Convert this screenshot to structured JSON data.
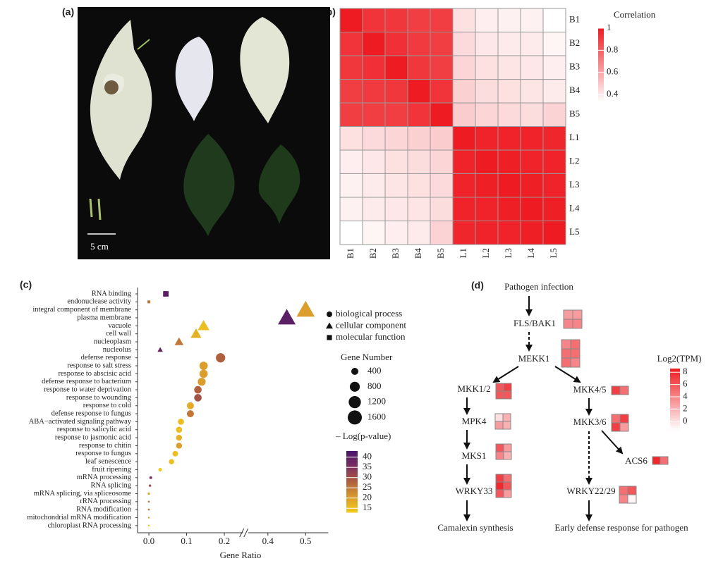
{
  "panel_labels": [
    "(a)",
    "(b)",
    "(c)",
    "(d)"
  ],
  "photo": {
    "scale_bar": "5 cm"
  },
  "chart_data": [
    {
      "type": "heatmap",
      "x_categories": [
        "B1",
        "B2",
        "B3",
        "B4",
        "B5",
        "L1",
        "L2",
        "L3",
        "L4",
        "L5"
      ],
      "y_categories": [
        "B1",
        "B2",
        "B3",
        "B4",
        "B5",
        "L1",
        "L2",
        "L3",
        "L4",
        "L5"
      ],
      "values": [
        [
          1,
          0.93,
          0.92,
          0.9,
          0.9,
          0.42,
          0.38,
          0.37,
          0.37,
          0.33
        ],
        [
          0.93,
          1,
          0.94,
          0.91,
          0.9,
          0.44,
          0.4,
          0.39,
          0.39,
          0.36
        ],
        [
          0.92,
          0.94,
          1,
          0.92,
          0.9,
          0.45,
          0.42,
          0.41,
          0.4,
          0.38
        ],
        [
          0.9,
          0.91,
          0.92,
          1,
          0.93,
          0.47,
          0.43,
          0.42,
          0.41,
          0.39
        ],
        [
          0.9,
          0.9,
          0.9,
          0.93,
          1,
          0.48,
          0.45,
          0.44,
          0.43,
          0.46
        ],
        [
          0.42,
          0.44,
          0.45,
          0.47,
          0.48,
          1,
          0.98,
          0.98,
          0.98,
          0.97
        ],
        [
          0.38,
          0.4,
          0.42,
          0.43,
          0.45,
          0.98,
          1,
          0.99,
          0.98,
          0.98
        ],
        [
          0.37,
          0.39,
          0.41,
          0.42,
          0.44,
          0.98,
          0.99,
          1,
          0.99,
          0.98
        ],
        [
          0.37,
          0.39,
          0.4,
          0.41,
          0.43,
          0.98,
          0.98,
          0.99,
          1,
          0.99
        ],
        [
          0.33,
          0.36,
          0.38,
          0.39,
          0.46,
          0.97,
          0.98,
          0.98,
          0.99,
          1
        ]
      ],
      "colorbar_title": "Correlation",
      "clim": [
        0.33,
        1
      ],
      "cticks": [
        0.4,
        0.6,
        0.8,
        1
      ],
      "colors": [
        "#ffffff",
        "#ee1c22"
      ]
    },
    {
      "type": "dotplot",
      "categories": [
        "RNA binding",
        "endonuclease activity",
        "integral component of membrane",
        "plasma membrane",
        "vacuole",
        "cell wall",
        "nucleoplasm",
        "nucleolus",
        "defense response",
        "response to salt stress",
        "response to abscisic acid",
        "defense response to bacterium",
        "response to water deprivation",
        "response to wounding",
        "response to cold",
        "defense response to fungus",
        "ABA−activated signaling pathway",
        "response to salicylic acid",
        "response to jasmonic acid",
        "response to chitin",
        "response to fungus",
        "leaf senescence",
        "fruit ripening",
        "mRNA processing",
        "RNA splicing",
        "mRNA splicing, via spliceosome",
        "rRNA processing",
        "RNA modification",
        "mitochondrial mRNA modification",
        "chloroplast RNA processing"
      ],
      "x": [
        0.045,
        0.0,
        0.5,
        0.45,
        0.145,
        0.125,
        0.08,
        0.03,
        0.19,
        0.145,
        0.145,
        0.14,
        0.13,
        0.13,
        0.11,
        0.11,
        0.085,
        0.08,
        0.08,
        0.08,
        0.07,
        0.06,
        0.03,
        0.005,
        0.003,
        0.0,
        0.0,
        0.0,
        0.0,
        0.0
      ],
      "sizes": [
        300,
        80,
        1700,
        1600,
        700,
        600,
        400,
        150,
        700,
        550,
        550,
        500,
        450,
        450,
        400,
        400,
        300,
        300,
        280,
        280,
        250,
        220,
        100,
        60,
        50,
        40,
        30,
        30,
        20,
        20
      ],
      "color_values": [
        40,
        25,
        20,
        40,
        15,
        17,
        25,
        38,
        28,
        20,
        20,
        20,
        28,
        30,
        18,
        25,
        15,
        15,
        17,
        20,
        15,
        15,
        13,
        35,
        30,
        20,
        25,
        25,
        20,
        15
      ],
      "groups": [
        2,
        2,
        1,
        1,
        1,
        1,
        1,
        1,
        0,
        0,
        0,
        0,
        0,
        0,
        0,
        0,
        0,
        0,
        0,
        0,
        0,
        0,
        0,
        0,
        0,
        0,
        0,
        0,
        0,
        0
      ],
      "group_names": [
        "biological  process",
        "cellular component",
        "molecular function"
      ],
      "x_label": "Gene Ratio",
      "xlim": [
        -0.03,
        0.56
      ],
      "x_break": [
        0.22,
        0.37
      ],
      "xticks": [
        {
          "value": 0,
          "label": "0.0"
        },
        0.1,
        0.2,
        0.4,
        0.5
      ],
      "size_legend_title": "Gene Number",
      "size_legend": [
        400,
        800,
        1200,
        1600
      ],
      "color_legend_title": "– Log(p-value)",
      "clim": [
        13,
        43
      ],
      "cticks": [
        15,
        20,
        25,
        30,
        35,
        40
      ],
      "colors": [
        "#f3cb1c",
        "#d99a2c",
        "#b0603e",
        "#7c2f62",
        "#451569"
      ]
    }
  ],
  "diagram": {
    "nodes": [
      {
        "label": "Pathogen infection"
      },
      {
        "label": "FLS/BAK1",
        "tpm": [
          [
            3,
            3
          ],
          [
            4,
            4
          ]
        ]
      },
      {
        "label": "MEKK1",
        "tpm": [
          [
            4,
            5
          ],
          [
            5,
            5
          ],
          [
            5,
            4
          ]
        ]
      },
      {
        "label": "MKK1/2",
        "tpm": [
          [
            6,
            7
          ],
          [
            6,
            6
          ]
        ]
      },
      {
        "label": "MKK4/5",
        "tpm": [
          [
            7,
            5
          ]
        ]
      },
      {
        "label": "MPK4",
        "tpm": [
          [
            0,
            2
          ],
          [
            3,
            2
          ]
        ]
      },
      {
        "label": "MKK3/6",
        "tpm": [
          [
            5,
            7
          ],
          [
            7,
            3
          ]
        ]
      },
      {
        "label": "MKS1",
        "tpm": [
          [
            6,
            3
          ],
          [
            4,
            2
          ]
        ]
      },
      {
        "label": "ACS6",
        "tpm": [
          [
            8,
            5
          ]
        ]
      },
      {
        "label": "WRKY33",
        "tpm": [
          [
            7,
            5
          ],
          [
            8,
            6
          ],
          [
            6,
            3
          ]
        ]
      },
      {
        "label": "WRKY22/29",
        "tpm": [
          [
            5,
            6
          ],
          [
            4,
            -1
          ]
        ]
      }
    ],
    "outputs": [
      "Camalexin synthesis",
      "Early defense response for pathogen"
    ],
    "colorbar_title": "Log2(TPM)",
    "clim": [
      -1.4,
      8.6
    ],
    "cticks": [
      0,
      2,
      4,
      6,
      8
    ],
    "colors": [
      "#ffffff",
      "#ee1c22"
    ]
  }
}
